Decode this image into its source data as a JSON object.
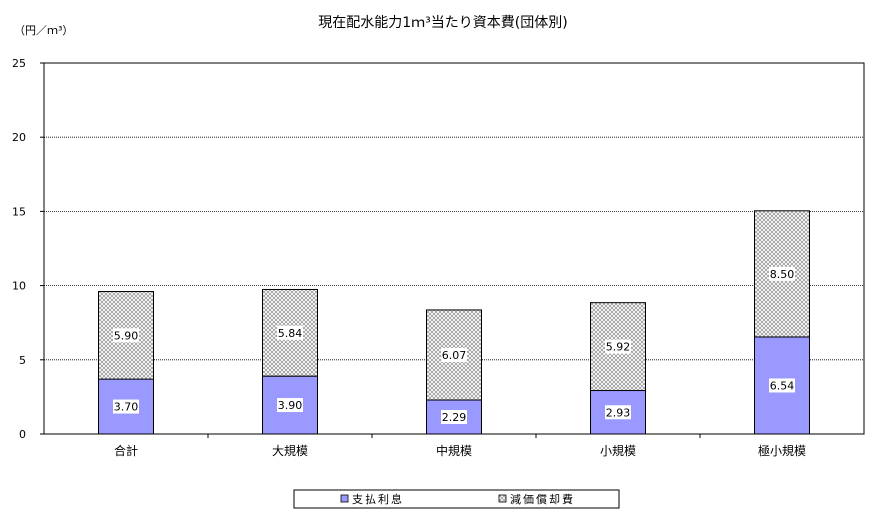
{
  "colors": {
    "interest": "#9999ff",
    "depreciation_bg": "#ffffff",
    "depreciation_hatch": "#8c8c8c",
    "label_bg": "#ffffff",
    "gridline": "#000000"
  },
  "chart_data": {
    "type": "bar",
    "stacked": true,
    "title": "現在配水能力1ｍ³当たり資本費(団体別)",
    "y_unit": "（円／ｍ³）",
    "xlabel": "",
    "ylabel": "",
    "ylim": [
      0,
      25
    ],
    "yticks": [
      0,
      5,
      10,
      15,
      20,
      25
    ],
    "grid": true,
    "legend_position": "bottom",
    "categories": [
      "合計",
      "大規模",
      "中規模",
      "小規模",
      "極小規模"
    ],
    "series": [
      {
        "name": "支払利息",
        "values": [
          3.7,
          3.9,
          2.29,
          2.93,
          6.54
        ],
        "labels": [
          "3.70",
          "3.90",
          "2.29",
          "2.93",
          "6.54"
        ]
      },
      {
        "name": "減価償却費",
        "values": [
          5.9,
          5.84,
          6.07,
          5.92,
          8.5
        ],
        "labels": [
          "5.90",
          "5.84",
          "6.07",
          "5.92",
          "8.50"
        ]
      }
    ]
  }
}
